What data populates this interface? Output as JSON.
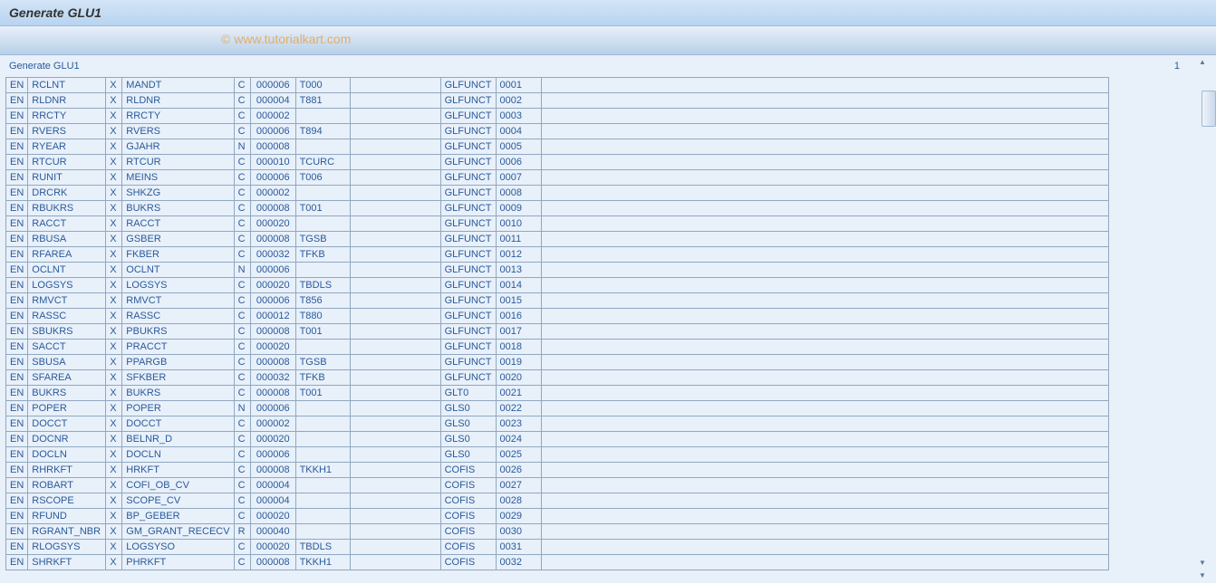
{
  "window": {
    "title": "Generate GLU1",
    "subtitle": "Generate GLU1",
    "page_number": "1",
    "watermark": "© www.tutorialkart.com"
  },
  "colors": {
    "title_bg_top": "#d4e5f7",
    "title_bg_bottom": "#b8d4f0",
    "toolbar_bg_top": "#e8f0fa",
    "toolbar_bg_bottom": "#b8d0e8",
    "content_bg": "#e8f0fa",
    "text_color": "#2a5a9a",
    "border_color": "#90a8c0",
    "watermark_color": "#e8a04a"
  },
  "table": {
    "rows": [
      [
        "EN",
        "RCLNT",
        "X",
        "MANDT",
        "C",
        "000006",
        "T000",
        "",
        "GLFUNCT",
        "0001"
      ],
      [
        "EN",
        "RLDNR",
        "X",
        "RLDNR",
        "C",
        "000004",
        "T881",
        "",
        "GLFUNCT",
        "0002"
      ],
      [
        "EN",
        "RRCTY",
        "X",
        "RRCTY",
        "C",
        "000002",
        "",
        "",
        "GLFUNCT",
        "0003"
      ],
      [
        "EN",
        "RVERS",
        "X",
        "RVERS",
        "C",
        "000006",
        "T894",
        "",
        "GLFUNCT",
        "0004"
      ],
      [
        "EN",
        "RYEAR",
        "X",
        "GJAHR",
        "N",
        "000008",
        "",
        "",
        "GLFUNCT",
        "0005"
      ],
      [
        "EN",
        "RTCUR",
        "X",
        "RTCUR",
        "C",
        "000010",
        "TCURC",
        "",
        "GLFUNCT",
        "0006"
      ],
      [
        "EN",
        "RUNIT",
        "X",
        "MEINS",
        "C",
        "000006",
        "T006",
        "",
        "GLFUNCT",
        "0007"
      ],
      [
        "EN",
        "DRCRK",
        "X",
        "SHKZG",
        "C",
        "000002",
        "",
        "",
        "GLFUNCT",
        "0008"
      ],
      [
        "EN",
        "RBUKRS",
        "X",
        "BUKRS",
        "C",
        "000008",
        "T001",
        "",
        "GLFUNCT",
        "0009"
      ],
      [
        "EN",
        "RACCT",
        "X",
        "RACCT",
        "C",
        "000020",
        "",
        "",
        "GLFUNCT",
        "0010"
      ],
      [
        "EN",
        "RBUSA",
        "X",
        "GSBER",
        "C",
        "000008",
        "TGSB",
        "",
        "GLFUNCT",
        "0011"
      ],
      [
        "EN",
        "RFAREA",
        "X",
        "FKBER",
        "C",
        "000032",
        "TFKB",
        "",
        "GLFUNCT",
        "0012"
      ],
      [
        "EN",
        "OCLNT",
        "X",
        "OCLNT",
        "N",
        "000006",
        "",
        "",
        "GLFUNCT",
        "0013"
      ],
      [
        "EN",
        "LOGSYS",
        "X",
        "LOGSYS",
        "C",
        "000020",
        "TBDLS",
        "",
        "GLFUNCT",
        "0014"
      ],
      [
        "EN",
        "RMVCT",
        "X",
        "RMVCT",
        "C",
        "000006",
        "T856",
        "",
        "GLFUNCT",
        "0015"
      ],
      [
        "EN",
        "RASSC",
        "X",
        "RASSC",
        "C",
        "000012",
        "T880",
        "",
        "GLFUNCT",
        "0016"
      ],
      [
        "EN",
        "SBUKRS",
        "X",
        "PBUKRS",
        "C",
        "000008",
        "T001",
        "",
        "GLFUNCT",
        "0017"
      ],
      [
        "EN",
        "SACCT",
        "X",
        "PRACCT",
        "C",
        "000020",
        "",
        "",
        "GLFUNCT",
        "0018"
      ],
      [
        "EN",
        "SBUSA",
        "X",
        "PPARGB",
        "C",
        "000008",
        "TGSB",
        "",
        "GLFUNCT",
        "0019"
      ],
      [
        "EN",
        "SFAREA",
        "X",
        "SFKBER",
        "C",
        "000032",
        "TFKB",
        "",
        "GLFUNCT",
        "0020"
      ],
      [
        "EN",
        "BUKRS",
        "X",
        "BUKRS",
        "C",
        "000008",
        "T001",
        "",
        "GLT0",
        "0021"
      ],
      [
        "EN",
        "POPER",
        "X",
        "POPER",
        "N",
        "000006",
        "",
        "",
        "GLS0",
        "0022"
      ],
      [
        "EN",
        "DOCCT",
        "X",
        "DOCCT",
        "C",
        "000002",
        "",
        "",
        "GLS0",
        "0023"
      ],
      [
        "EN",
        "DOCNR",
        "X",
        "BELNR_D",
        "C",
        "000020",
        "",
        "",
        "GLS0",
        "0024"
      ],
      [
        "EN",
        "DOCLN",
        "X",
        "DOCLN",
        "C",
        "000006",
        "",
        "",
        "GLS0",
        "0025"
      ],
      [
        "EN",
        "RHRKFT",
        "X",
        "HRKFT",
        "C",
        "000008",
        "TKKH1",
        "",
        "COFIS",
        "0026"
      ],
      [
        "EN",
        "ROBART",
        "X",
        "COFI_OB_CV",
        "C",
        "000004",
        "",
        "",
        "COFIS",
        "0027"
      ],
      [
        "EN",
        "RSCOPE",
        "X",
        "SCOPE_CV",
        "C",
        "000004",
        "",
        "",
        "COFIS",
        "0028"
      ],
      [
        "EN",
        "RFUND",
        "X",
        "BP_GEBER",
        "C",
        "000020",
        "",
        "",
        "COFIS",
        "0029"
      ],
      [
        "EN",
        "RGRANT_NBR",
        "X",
        "GM_GRANT_RECECV",
        "R",
        "000040",
        "",
        "",
        "COFIS",
        "0030"
      ],
      [
        "EN",
        "RLOGSYS",
        "X",
        "LOGSYSO",
        "C",
        "000020",
        "TBDLS",
        "",
        "COFIS",
        "0031"
      ],
      [
        "EN",
        "SHRKFT",
        "X",
        "PHRKFT",
        "C",
        "000008",
        "TKKH1",
        "",
        "COFIS",
        "0032"
      ]
    ]
  }
}
